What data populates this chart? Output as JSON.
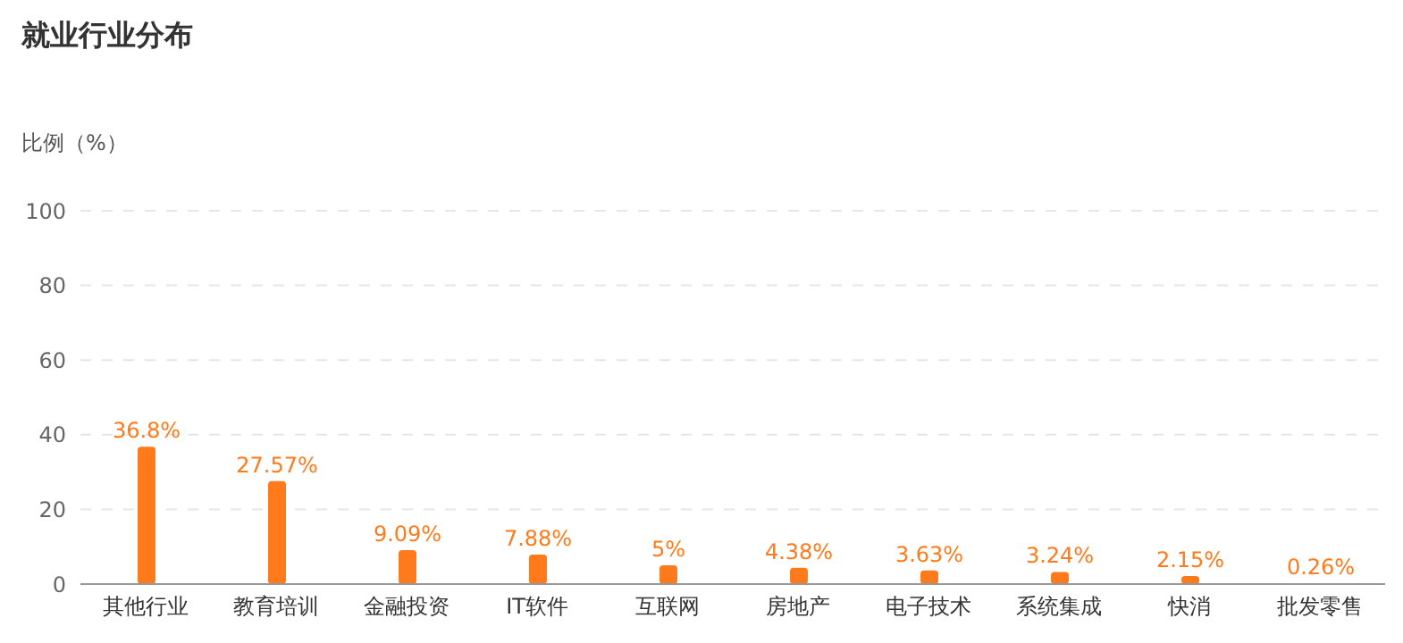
{
  "chart_data": {
    "type": "bar",
    "title": "就业行业分布",
    "ylabel": "比例（%）",
    "categories": [
      "其他行业",
      "教育培训",
      "金融投资",
      "IT软件",
      "互联网",
      "房地产",
      "电子技术",
      "系统集成",
      "快消",
      "批发零售"
    ],
    "values": [
      36.8,
      27.57,
      9.09,
      7.88,
      5,
      4.38,
      3.63,
      3.24,
      2.15,
      0.26
    ],
    "value_labels": [
      "36.8%",
      "27.57%",
      "9.09%",
      "7.88%",
      "5%",
      "4.38%",
      "3.63%",
      "3.24%",
      "2.15%",
      "0.26%"
    ],
    "color": "#ff7a1a",
    "ylim": [
      0,
      100
    ],
    "yticks": [
      0,
      20,
      40,
      60,
      80,
      100
    ],
    "grid": "y"
  }
}
